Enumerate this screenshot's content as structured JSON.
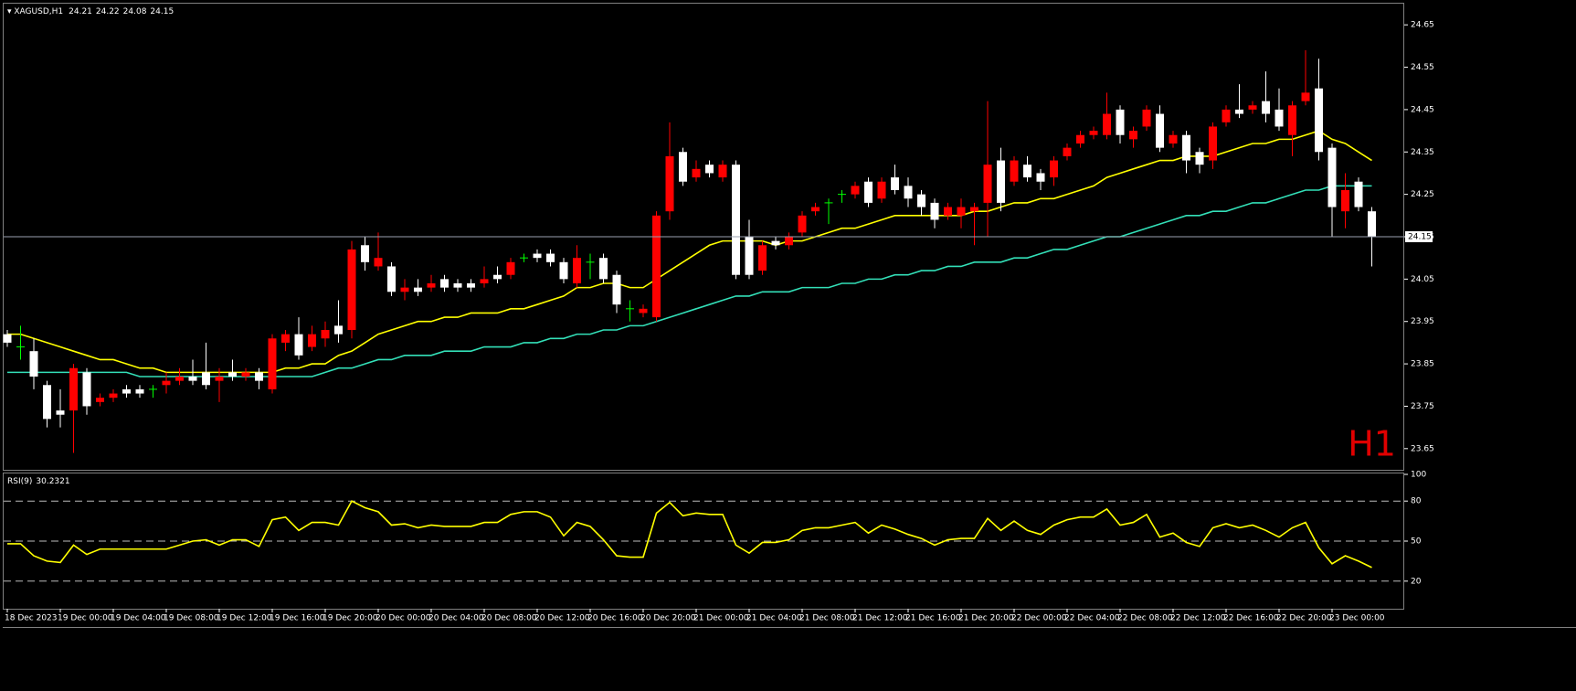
{
  "chart_data": [
    {
      "type": "candlestick",
      "title": "XAGUSD,H1",
      "watermark": "H1",
      "categories": [
        "18 Dec 2023",
        null,
        null,
        null,
        "19 Dec 00:00",
        null,
        null,
        null,
        "19 Dec 04:00",
        null,
        null,
        null,
        "19 Dec 08:00",
        null,
        null,
        null,
        "19 Dec 12:00",
        null,
        null,
        null,
        "19 Dec 16:00",
        null,
        null,
        null,
        "19 Dec 20:00",
        null,
        null,
        null,
        "20 Dec 00:00",
        null,
        null,
        null,
        "20 Dec 04:00",
        null,
        null,
        null,
        "20 Dec 08:00",
        null,
        null,
        null,
        "20 Dec 12:00",
        null,
        null,
        null,
        "20 Dec 16:00",
        null,
        null,
        null,
        "20 Dec 20:00",
        null,
        null,
        null,
        "21 Dec 00:00",
        null,
        null,
        null,
        "21 Dec 04:00",
        null,
        null,
        null,
        "21 Dec 08:00",
        null,
        null,
        null,
        "21 Dec 12:00",
        null,
        null,
        null,
        "21 Dec 16:00",
        null,
        null,
        null,
        "21 Dec 20:00",
        null,
        null,
        null,
        "22 Dec 00:00",
        null,
        null,
        null,
        "22 Dec 04:00",
        null,
        null,
        null,
        "22 Dec 08:00",
        null,
        null,
        null,
        "22 Dec 12:00",
        null,
        null,
        null,
        "22 Dec 16:00",
        null,
        null,
        null,
        "22 Dec 20:00",
        null,
        null,
        null,
        "23 Dec 00:00",
        null,
        null,
        null
      ],
      "open": [
        23.92,
        23.89,
        23.88,
        23.8,
        23.74,
        23.74,
        23.83,
        23.76,
        23.77,
        23.79,
        23.79,
        23.79,
        23.8,
        23.81,
        23.82,
        23.83,
        23.81,
        23.83,
        23.82,
        23.83,
        23.79,
        23.9,
        23.92,
        23.89,
        23.91,
        23.94,
        23.93,
        24.13,
        24.08,
        24.08,
        24.02,
        24.03,
        24.03,
        24.05,
        24.04,
        24.04,
        24.04,
        24.06,
        24.06,
        24.1,
        24.11,
        24.11,
        24.09,
        24.04,
        24.09,
        24.1,
        24.06,
        23.98,
        23.97,
        23.96,
        24.21,
        24.35,
        24.29,
        24.32,
        24.29,
        24.32,
        24.15,
        24.07,
        24.14,
        24.13,
        24.16,
        24.21,
        24.23,
        24.25,
        24.25,
        24.28,
        24.24,
        24.29,
        24.27,
        24.25,
        24.23,
        24.2,
        24.2,
        24.21,
        24.23,
        24.33,
        24.28,
        24.32,
        24.3,
        24.29,
        24.34,
        24.37,
        24.39,
        24.39,
        24.45,
        24.38,
        24.41,
        24.44,
        24.37,
        24.39,
        24.35,
        24.33,
        24.42,
        24.45,
        24.45,
        24.47,
        24.45,
        24.39,
        24.47,
        24.5,
        24.36,
        24.21,
        24.28,
        24.21
      ],
      "high": [
        23.93,
        23.94,
        23.91,
        23.81,
        23.79,
        23.85,
        23.84,
        23.78,
        23.79,
        23.8,
        23.8,
        23.8,
        23.83,
        23.84,
        23.86,
        23.9,
        23.84,
        23.86,
        23.84,
        23.84,
        23.92,
        23.93,
        23.96,
        23.94,
        23.95,
        24.0,
        24.14,
        24.15,
        24.16,
        24.09,
        24.05,
        24.05,
        24.06,
        24.06,
        24.05,
        24.05,
        24.08,
        24.08,
        24.1,
        24.11,
        24.12,
        24.12,
        24.1,
        24.13,
        24.11,
        24.11,
        24.07,
        24.0,
        23.99,
        24.21,
        24.42,
        24.36,
        24.33,
        24.33,
        24.33,
        24.33,
        24.19,
        24.14,
        24.15,
        24.16,
        24.21,
        24.23,
        24.24,
        24.26,
        24.28,
        24.29,
        24.29,
        24.32,
        24.29,
        24.26,
        24.24,
        24.23,
        24.24,
        24.23,
        24.47,
        24.36,
        24.34,
        24.34,
        24.31,
        24.34,
        24.37,
        24.4,
        24.41,
        24.49,
        24.46,
        24.41,
        24.46,
        24.46,
        24.4,
        24.4,
        24.36,
        24.42,
        24.46,
        24.51,
        24.47,
        24.54,
        24.5,
        24.47,
        24.59,
        24.57,
        24.37,
        24.3,
        24.29,
        24.22
      ],
      "low": [
        23.89,
        23.86,
        23.79,
        23.7,
        23.7,
        23.64,
        23.73,
        23.75,
        23.76,
        23.77,
        23.77,
        23.77,
        23.78,
        23.8,
        23.8,
        23.79,
        23.76,
        23.81,
        23.81,
        23.79,
        23.78,
        23.88,
        23.86,
        23.88,
        23.89,
        23.9,
        23.91,
        24.07,
        24.07,
        24.01,
        24.0,
        24.01,
        24.02,
        24.02,
        24.02,
        24.02,
        24.03,
        24.04,
        24.05,
        24.09,
        24.09,
        24.08,
        24.04,
        24.03,
        24.05,
        24.04,
        23.97,
        23.95,
        23.96,
        23.95,
        24.19,
        24.27,
        24.28,
        24.29,
        24.28,
        24.05,
        24.05,
        24.06,
        24.12,
        24.12,
        24.15,
        24.2,
        24.18,
        24.23,
        24.24,
        24.22,
        24.23,
        24.25,
        24.22,
        24.2,
        24.17,
        24.19,
        24.17,
        24.13,
        24.15,
        24.21,
        24.27,
        24.28,
        24.26,
        24.27,
        24.33,
        24.36,
        24.38,
        24.38,
        24.37,
        24.36,
        24.4,
        24.35,
        24.36,
        24.3,
        24.3,
        24.31,
        24.41,
        24.43,
        24.44,
        24.42,
        24.4,
        24.34,
        24.46,
        24.33,
        24.15,
        24.17,
        24.21,
        24.08
      ],
      "close": [
        23.9,
        23.89,
        23.82,
        23.72,
        23.73,
        23.84,
        23.75,
        23.77,
        23.78,
        23.78,
        23.78,
        23.79,
        23.81,
        23.82,
        23.81,
        23.8,
        23.82,
        23.82,
        23.83,
        23.81,
        23.91,
        23.92,
        23.87,
        23.92,
        23.93,
        23.92,
        24.12,
        24.09,
        24.1,
        24.02,
        24.03,
        24.02,
        24.04,
        24.03,
        24.03,
        24.03,
        24.05,
        24.05,
        24.09,
        24.1,
        24.1,
        24.09,
        24.05,
        24.1,
        24.09,
        24.05,
        23.99,
        23.98,
        23.98,
        24.2,
        24.34,
        24.28,
        24.31,
        24.3,
        24.32,
        24.06,
        24.06,
        24.13,
        24.13,
        24.15,
        24.2,
        24.22,
        24.23,
        24.25,
        24.27,
        24.23,
        24.28,
        24.26,
        24.24,
        24.22,
        24.19,
        24.22,
        24.22,
        24.22,
        24.32,
        24.23,
        24.33,
        24.29,
        24.28,
        24.33,
        24.36,
        24.39,
        24.4,
        24.44,
        24.39,
        24.4,
        24.45,
        24.36,
        24.39,
        24.33,
        24.32,
        24.41,
        24.45,
        24.44,
        24.46,
        24.44,
        24.41,
        24.46,
        24.49,
        24.35,
        24.22,
        24.26,
        24.22,
        24.15
      ],
      "lines": [
        {
          "color": "#ffff00",
          "values": [
            23.92,
            23.92,
            23.91,
            23.9,
            23.89,
            23.88,
            23.87,
            23.86,
            23.86,
            23.85,
            23.84,
            23.84,
            23.83,
            23.83,
            23.83,
            23.83,
            23.83,
            23.83,
            23.83,
            23.83,
            23.83,
            23.84,
            23.84,
            23.85,
            23.85,
            23.87,
            23.88,
            23.9,
            23.92,
            23.93,
            23.94,
            23.95,
            23.95,
            23.96,
            23.96,
            23.97,
            23.97,
            23.97,
            23.98,
            23.98,
            23.99,
            24.0,
            24.01,
            24.03,
            24.03,
            24.04,
            24.04,
            24.03,
            24.03,
            24.05,
            24.07,
            24.09,
            24.11,
            24.13,
            24.14,
            24.14,
            24.14,
            24.14,
            24.13,
            24.14,
            24.14,
            24.15,
            24.16,
            24.17,
            24.17,
            24.18,
            24.19,
            24.2,
            24.2,
            24.2,
            24.2,
            24.2,
            24.2,
            24.21,
            24.21,
            24.22,
            24.23,
            24.23,
            24.24,
            24.24,
            24.25,
            24.26,
            24.27,
            24.29,
            24.3,
            24.31,
            24.32,
            24.33,
            24.33,
            24.34,
            24.34,
            24.34,
            24.35,
            24.36,
            24.37,
            24.37,
            24.38,
            24.38,
            24.39,
            24.4,
            24.38,
            24.37,
            24.35,
            24.33
          ]
        },
        {
          "color": "#33e0b8",
          "values": [
            23.83,
            23.83,
            23.83,
            23.83,
            23.83,
            23.83,
            23.83,
            23.83,
            23.83,
            23.83,
            23.82,
            23.82,
            23.82,
            23.82,
            23.82,
            23.82,
            23.82,
            23.82,
            23.82,
            23.82,
            23.82,
            23.82,
            23.82,
            23.82,
            23.83,
            23.84,
            23.84,
            23.85,
            23.86,
            23.86,
            23.87,
            23.87,
            23.87,
            23.88,
            23.88,
            23.88,
            23.89,
            23.89,
            23.89,
            23.9,
            23.9,
            23.91,
            23.91,
            23.92,
            23.92,
            23.93,
            23.93,
            23.94,
            23.94,
            23.95,
            23.96,
            23.97,
            23.98,
            23.99,
            24.0,
            24.01,
            24.01,
            24.02,
            24.02,
            24.02,
            24.03,
            24.03,
            24.03,
            24.04,
            24.04,
            24.05,
            24.05,
            24.06,
            24.06,
            24.07,
            24.07,
            24.08,
            24.08,
            24.09,
            24.09,
            24.09,
            24.1,
            24.1,
            24.11,
            24.12,
            24.12,
            24.13,
            24.14,
            24.15,
            24.15,
            24.16,
            24.17,
            24.18,
            24.19,
            24.2,
            24.2,
            24.21,
            24.21,
            24.22,
            24.23,
            24.23,
            24.24,
            24.25,
            24.26,
            24.26,
            24.27,
            24.27,
            24.27,
            24.27
          ]
        }
      ],
      "up_color": "#ff0000",
      "down_color": "#ffffff",
      "doji_color": "#00ff00",
      "ylim": [
        23.6,
        24.7
      ],
      "yticks": [
        23.65,
        23.75,
        23.85,
        23.95,
        24.05,
        24.15,
        24.25,
        24.35,
        24.45,
        24.55,
        24.65
      ]
    },
    {
      "type": "line",
      "title": "RSI(9)",
      "color": "#ffff00",
      "values": [
        48,
        48,
        39,
        35,
        34,
        47,
        40,
        44,
        44,
        44,
        44,
        44,
        44,
        47,
        50,
        51,
        47,
        51,
        51,
        46,
        66,
        68,
        58,
        64,
        64,
        62,
        80,
        75,
        72,
        62,
        63,
        60,
        62,
        61,
        61,
        61,
        64,
        64,
        70,
        72,
        72,
        68,
        54,
        64,
        61,
        51,
        39,
        38,
        38,
        71,
        79,
        69,
        71,
        70,
        70,
        47,
        41,
        49,
        49,
        51,
        58,
        60,
        60,
        62,
        64,
        56,
        62,
        59,
        55,
        52,
        47,
        51,
        52,
        52,
        67,
        58,
        65,
        58,
        55,
        62,
        66,
        68,
        68,
        74,
        62,
        64,
        70,
        53,
        56,
        49,
        46,
        60,
        63,
        60,
        62,
        58,
        53,
        60,
        64,
        45,
        33,
        39,
        35,
        30.2321
      ],
      "levels": [
        20,
        50,
        80
      ],
      "ylim": [
        0,
        100
      ],
      "yticks": [
        20,
        50,
        80,
        100
      ]
    }
  ]
}
